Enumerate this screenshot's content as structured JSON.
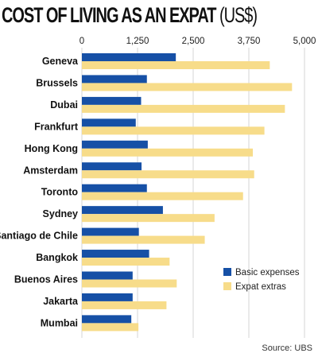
{
  "title": {
    "main": "COST OF LIVING AS AN EXPAT",
    "unit": "(US$)"
  },
  "source": "Source: UBS",
  "colors": {
    "basic": "#1650a6",
    "extras": "#f7dc8a",
    "grid": "#d6d6d6",
    "text": "#111111"
  },
  "chart_data": {
    "type": "bar",
    "orientation": "horizontal",
    "stacked": false,
    "title": "COST OF LIVING AS AN EXPAT (US$)",
    "xlim": [
      0,
      5000
    ],
    "xticks": [
      0,
      1250,
      2500,
      3750,
      5000
    ],
    "xtick_labels": [
      "0",
      "1,250",
      "2,500",
      "3,750",
      "5,000"
    ],
    "grid": true,
    "legend_position": "lower-right",
    "categories": [
      "Geneva",
      "Brussels",
      "Dubai",
      "Frankfurt",
      "Hong Kong",
      "Amsterdam",
      "Toronto",
      "Sydney",
      "Santiago de Chile",
      "Bangkok",
      "Buenos Aires",
      "Jakarta",
      "Mumbai"
    ],
    "series": [
      {
        "name": "Basic expenses",
        "color": "#1650a6",
        "values": [
          2110,
          1460,
          1330,
          1210,
          1480,
          1340,
          1460,
          1820,
          1280,
          1510,
          1140,
          1140,
          1110
        ]
      },
      {
        "name": "Expat extras",
        "color": "#f7dc8a",
        "values": [
          4220,
          4720,
          4560,
          4100,
          3840,
          3870,
          3620,
          2980,
          2760,
          1970,
          2130,
          1900,
          1270
        ]
      }
    ],
    "source": "Source: UBS"
  }
}
